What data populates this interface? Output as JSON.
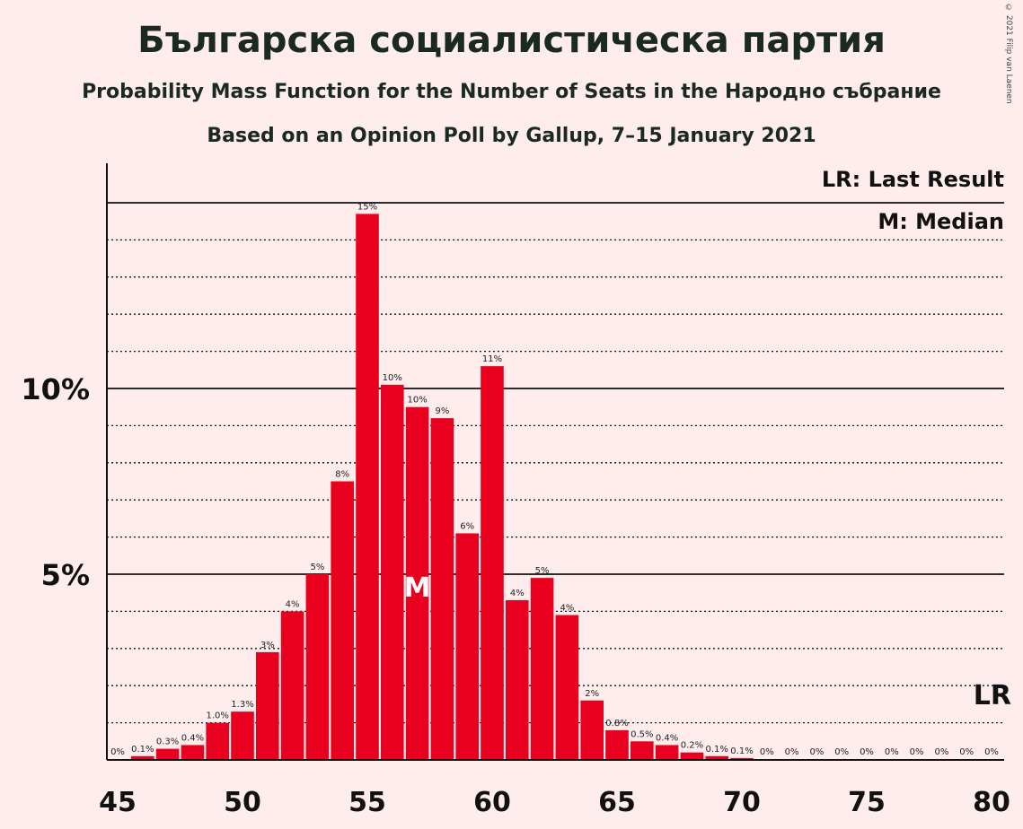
{
  "header": {
    "title": "Българска социалистическа партия",
    "subtitle": "Probability Mass Function for the Number of Seats in the Народно събрание",
    "subtitle2": "Based on an Opinion Poll by Gallup, 7–15 January 2021",
    "copyright": "© 2021 Filip van Laenen"
  },
  "legend": {
    "last_result": "LR: Last Result",
    "median": "M: Median"
  },
  "colors": {
    "background": "#FFEDED",
    "bar": "#E8001E",
    "axis": "#1a2a22"
  },
  "chart_data": {
    "type": "bar",
    "x": [
      46,
      47,
      48,
      49,
      50,
      51,
      52,
      53,
      54,
      55,
      56,
      57,
      58,
      59,
      60,
      61,
      62,
      63,
      64,
      65,
      66,
      67,
      68,
      69,
      70,
      71,
      72,
      73,
      74,
      75,
      76,
      77,
      78,
      79,
      80
    ],
    "values": [
      0.1,
      0.3,
      0.4,
      1.0,
      1.3,
      2.9,
      4.0,
      5.0,
      7.5,
      14.7,
      10.1,
      9.5,
      9.2,
      6.1,
      10.6,
      4.3,
      4.9,
      3.9,
      1.6,
      0.8,
      0.5,
      0.4,
      0.2,
      0.1,
      0.05,
      0,
      0,
      0,
      0,
      0,
      0,
      0,
      0,
      0,
      0
    ],
    "bar_labels": [
      "0.1%",
      "0.3%",
      "0.4%",
      "1.0%",
      "1.3%",
      "3%",
      "4%",
      "5%",
      "8%",
      "15%",
      "10%",
      "10%",
      "9%",
      "6%",
      "11%",
      "4%",
      "5%",
      "4%",
      "2%",
      "0.8%",
      "0.5%",
      "0.4%",
      "0.2%",
      "0.1%",
      "0.1%",
      "0%",
      "0%",
      "0%",
      "0%",
      "0%",
      "0%",
      "0%",
      "0%",
      "0%",
      "0%"
    ],
    "zero_label_x": 45,
    "zero_label": "0%",
    "x_ticks": [
      "45",
      "50",
      "55",
      "60",
      "65",
      "70",
      "75",
      "80"
    ],
    "y_ticks": [
      "5%",
      "10%"
    ],
    "xlim": [
      45,
      80
    ],
    "ylim": [
      0,
      16
    ],
    "median_seat": 57,
    "median_marker": "M",
    "last_result_seat": 80,
    "last_result_marker": "LR",
    "grid": "dotted lines at each 1%, solid lines at 5% and 10%"
  }
}
